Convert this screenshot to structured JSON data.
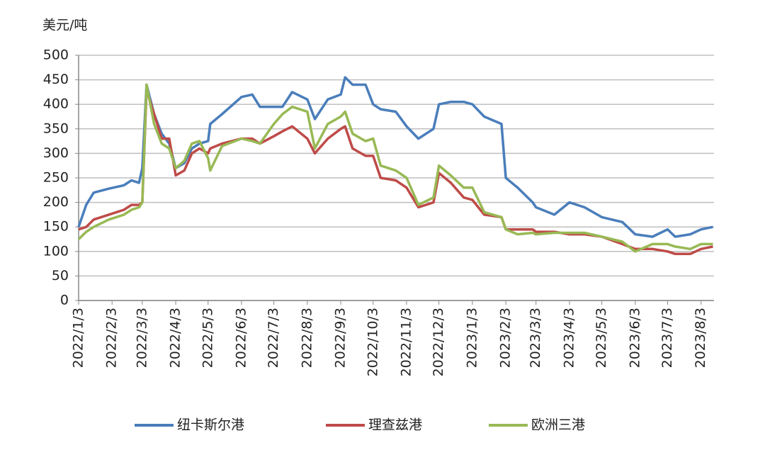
{
  "chart_data": {
    "type": "line",
    "y_label": "美元/吨",
    "x": [
      "2022/1/3",
      "2022/1/10",
      "2022/1/17",
      "2022/1/31",
      "2022/2/14",
      "2022/2/21",
      "2022/2/28",
      "2022/3/3",
      "2022/3/7",
      "2022/3/14",
      "2022/3/21",
      "2022/3/28",
      "2022/4/3",
      "2022/4/11",
      "2022/4/18",
      "2022/4/25",
      "2022/5/3",
      "2022/5/5",
      "2022/5/16",
      "2022/6/3",
      "2022/6/13",
      "2022/6/20",
      "2022/7/3",
      "2022/7/11",
      "2022/7/20",
      "2022/8/3",
      "2022/8/10",
      "2022/8/22",
      "2022/9/3",
      "2022/9/7",
      "2022/9/14",
      "2022/9/26",
      "2022/10/3",
      "2022/10/10",
      "2022/10/24",
      "2022/11/3",
      "2022/11/14",
      "2022/11/28",
      "2022/12/3",
      "2022/12/14",
      "2022/12/26",
      "2023/1/3",
      "2023/1/14",
      "2023/1/30",
      "2023/2/3",
      "2023/2/14",
      "2023/2/28",
      "2023/3/3",
      "2023/3/20",
      "2023/4/3",
      "2023/4/17",
      "2023/5/3",
      "2023/5/22",
      "2023/6/3",
      "2023/6/19",
      "2023/7/3",
      "2023/7/10",
      "2023/7/24",
      "2023/8/3",
      "2023/8/14"
    ],
    "series": [
      {
        "name": "纽卡斯尔港",
        "color": "#4a7ebb",
        "values": [
          150,
          195,
          220,
          228,
          235,
          245,
          240,
          270,
          440,
          380,
          340,
          320,
          270,
          280,
          310,
          320,
          325,
          360,
          380,
          415,
          420,
          395,
          395,
          395,
          425,
          410,
          370,
          410,
          420,
          455,
          440,
          440,
          400,
          390,
          385,
          355,
          330,
          350,
          400,
          405,
          405,
          400,
          375,
          360,
          250,
          230,
          200,
          190,
          175,
          200,
          190,
          170,
          160,
          135,
          130,
          145,
          130,
          135,
          145,
          150
        ]
      },
      {
        "name": "理查兹港",
        "color": "#be4b48",
        "values": [
          145,
          150,
          165,
          175,
          185,
          195,
          195,
          200,
          430,
          380,
          330,
          330,
          255,
          265,
          300,
          310,
          300,
          310,
          320,
          330,
          330,
          320,
          335,
          345,
          355,
          330,
          300,
          330,
          350,
          355,
          310,
          295,
          295,
          250,
          245,
          230,
          190,
          200,
          260,
          240,
          210,
          205,
          175,
          170,
          145,
          145,
          145,
          140,
          140,
          135,
          135,
          130,
          115,
          105,
          105,
          100,
          95,
          95,
          105,
          110
        ]
      },
      {
        "name": "欧洲三港",
        "color": "#98b954",
        "values": [
          125,
          140,
          150,
          165,
          175,
          185,
          190,
          200,
          440,
          360,
          320,
          310,
          270,
          285,
          320,
          325,
          290,
          265,
          315,
          330,
          325,
          320,
          360,
          380,
          395,
          385,
          310,
          360,
          375,
          385,
          340,
          325,
          330,
          275,
          265,
          250,
          195,
          210,
          275,
          255,
          230,
          230,
          180,
          170,
          145,
          135,
          138,
          135,
          138,
          138,
          138,
          130,
          120,
          100,
          115,
          115,
          110,
          105,
          115,
          115
        ]
      }
    ],
    "xlim": [
      "2022/1/3",
      "2023/8/15"
    ],
    "xticks": [
      "2022/1/3",
      "2022/2/3",
      "2022/3/3",
      "2022/4/3",
      "2022/5/3",
      "2022/6/3",
      "2022/7/3",
      "2022/8/3",
      "2022/9/3",
      "2022/10/3",
      "2022/11/3",
      "2022/12/3",
      "2023/1/3",
      "2023/2/3",
      "2023/3/3",
      "2023/4/3",
      "2023/5/3",
      "2023/6/3",
      "2023/7/3",
      "2023/8/3"
    ],
    "ylim": [
      0,
      500
    ],
    "yticks": [
      0,
      50,
      100,
      150,
      200,
      250,
      300,
      350,
      400,
      450,
      500
    ],
    "grid": true
  }
}
